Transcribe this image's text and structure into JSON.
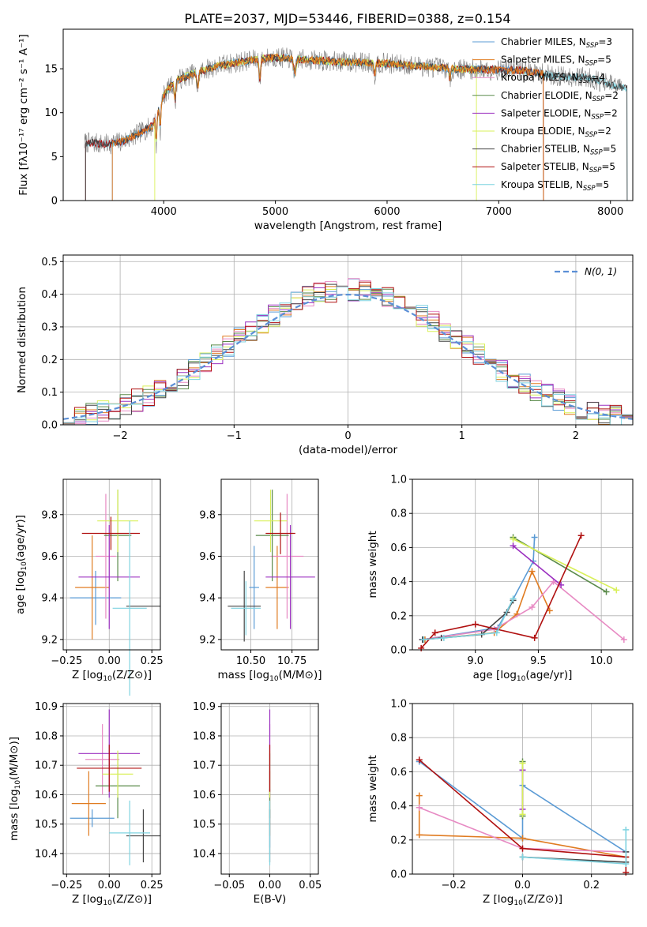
{
  "figure": {
    "title": "PLATE=2037, MJD=53446, FIBERID=0388, z=0.154"
  },
  "colors": {
    "chabrier_miles": "#5b9bd5",
    "salpeter_miles": "#e07b20",
    "kroupa_miles": "#e78ac3",
    "chabrier_elodie": "#5a8a4a",
    "salpeter_elodie": "#9b30c0",
    "kroupa_elodie": "#d9f05a",
    "chabrier_stelib": "#444444",
    "salpeter_stelib": "#b01010",
    "kroupa_stelib": "#7fd3e0",
    "data_spectrum": "#7f7f7f",
    "normal_curve": "#5b8fd6"
  },
  "chart_data": [
    {
      "id": "spectrum",
      "type": "line",
      "xlabel": "wavelength [Angstrom, rest frame]",
      "ylabel": "Flux [fλ10⁻¹⁷ erg cm⁻² s⁻¹ A⁻¹]",
      "xlim": [
        3100,
        8200
      ],
      "ylim": [
        0,
        19.5
      ],
      "xticks": [
        4000,
        5000,
        6000,
        7000,
        8000
      ],
      "yticks": [
        0,
        5,
        10,
        15
      ],
      "grid": false,
      "legend_position": "top-right",
      "legend": [
        {
          "label": "Chabrier MILES, N",
          "sub": "SSP",
          "suffix": "=3",
          "color_key": "chabrier_miles"
        },
        {
          "label": "Salpeter MILES, N",
          "sub": "SSP",
          "suffix": "=5",
          "color_key": "salpeter_miles"
        },
        {
          "label": "Kroupa MILES, N",
          "sub": "SSP",
          "suffix": "=4",
          "color_key": "kroupa_miles"
        },
        {
          "label": "Chabrier ELODIE, N",
          "sub": "SSP",
          "suffix": "=2",
          "color_key": "chabrier_elodie"
        },
        {
          "label": "Salpeter ELODIE, N",
          "sub": "SSP",
          "suffix": "=2",
          "color_key": "salpeter_elodie"
        },
        {
          "label": "Kroupa ELODIE, N",
          "sub": "SSP",
          "suffix": "=2",
          "color_key": "kroupa_elodie"
        },
        {
          "label": "Chabrier STELIB, N",
          "sub": "SSP",
          "suffix": "=5",
          "color_key": "chabrier_stelib"
        },
        {
          "label": "Salpeter STELIB, N",
          "sub": "SSP",
          "suffix": "=5",
          "color_key": "salpeter_stelib"
        },
        {
          "label": "Kroupa STELIB, N",
          "sub": "SSP",
          "suffix": "=5",
          "color_key": "kroupa_stelib"
        }
      ],
      "continuum": [
        [
          3300,
          6.6
        ],
        [
          3500,
          6.4
        ],
        [
          3650,
          6.8
        ],
        [
          3800,
          7.8
        ],
        [
          3900,
          8.5
        ],
        [
          4000,
          12.0
        ],
        [
          4100,
          13.6
        ],
        [
          4300,
          14.6
        ],
        [
          4500,
          15.4
        ],
        [
          4800,
          16.0
        ],
        [
          5000,
          16.3
        ],
        [
          5300,
          16.0
        ],
        [
          5600,
          15.8
        ],
        [
          6000,
          15.6
        ],
        [
          6300,
          15.3
        ],
        [
          6600,
          15.0
        ],
        [
          6900,
          14.9
        ],
        [
          7200,
          14.8
        ],
        [
          7500,
          14.2
        ],
        [
          7800,
          14.0
        ],
        [
          8000,
          13.2
        ],
        [
          8150,
          12.8
        ]
      ],
      "data_range": [
        3290,
        8100
      ],
      "model_segments": [
        {
          "color_key": "kroupa_stelib",
          "range": [
            3300,
            8150
          ]
        },
        {
          "color_key": "chabrier_miles",
          "range": [
            3540,
            7400
          ]
        },
        {
          "color_key": "salpeter_stelib",
          "range": [
            3300,
            7400
          ]
        },
        {
          "color_key": "kroupa_elodie",
          "range": [
            3920,
            6800
          ]
        },
        {
          "color_key": "chabrier_stelib",
          "range": [
            3300,
            8150
          ]
        },
        {
          "color_key": "salpeter_miles",
          "range": [
            3540,
            7400
          ]
        }
      ]
    },
    {
      "id": "residuals",
      "type": "histogram",
      "xlabel": "(data-model)/error",
      "ylabel": "Normed distribution",
      "xlim": [
        -2.5,
        2.5
      ],
      "ylim": [
        0,
        0.52
      ],
      "xticks": [
        -2,
        -1,
        0,
        1,
        2
      ],
      "yticks": [
        0.0,
        0.1,
        0.2,
        0.3,
        0.4,
        0.5
      ],
      "grid": true,
      "legend_position": "top-right",
      "normal_label": "N(0, 1)",
      "bin_width": 0.1,
      "series": [
        {
          "color_key": "chabrier_miles",
          "phase": 0.0
        },
        {
          "color_key": "salpeter_miles",
          "phase": 1.0
        },
        {
          "color_key": "kroupa_miles",
          "phase": 2.0
        },
        {
          "color_key": "chabrier_elodie",
          "phase": 3.0
        },
        {
          "color_key": "salpeter_elodie",
          "phase": 4.0
        },
        {
          "color_key": "kroupa_elodie",
          "phase": 5.0
        },
        {
          "color_key": "chabrier_stelib",
          "phase": 6.0
        },
        {
          "color_key": "salpeter_stelib",
          "phase": 7.0
        },
        {
          "color_key": "kroupa_stelib",
          "phase": 8.0
        }
      ]
    },
    {
      "id": "age_vs_z",
      "type": "errorbar",
      "xlabel": "Z [log10(Z/Z⊙)]",
      "ylabel": "age [log10(age/yr)]",
      "xlim": [
        -0.27,
        0.3
      ],
      "ylim": [
        9.15,
        9.97
      ],
      "xticks": [
        -0.25,
        0.0,
        0.25
      ],
      "xtick_labels": [
        "−0.25",
        "0.00",
        "0.25"
      ],
      "yticks": [
        9.2,
        9.4,
        9.6,
        9.8
      ],
      "grid": true,
      "points": [
        {
          "color_key": "chabrier_miles",
          "x": -0.08,
          "y": 9.4,
          "xerr": 0.15,
          "yerr": 0.13
        },
        {
          "color_key": "salpeter_miles",
          "x": -0.1,
          "y": 9.45,
          "xerr": 0.1,
          "yerr": 0.25
        },
        {
          "color_key": "kroupa_miles",
          "x": -0.02,
          "y": 9.6,
          "xerr": 0.06,
          "yerr": 0.3
        },
        {
          "color_key": "chabrier_elodie",
          "x": 0.05,
          "y": 9.7,
          "xerr": 0.08,
          "yerr": 0.22
        },
        {
          "color_key": "salpeter_elodie",
          "x": 0.0,
          "y": 9.5,
          "xerr": 0.18,
          "yerr": 0.25
        },
        {
          "color_key": "kroupa_elodie",
          "x": 0.05,
          "y": 9.77,
          "xerr": 0.12,
          "yerr": 0.15
        },
        {
          "color_key": "chabrier_stelib",
          "x": 0.2,
          "y": 9.36,
          "xerr": 0.1,
          "yerr": 0.0
        },
        {
          "color_key": "salpeter_stelib",
          "x": 0.01,
          "y": 9.71,
          "xerr": 0.17,
          "yerr": 0.08
        },
        {
          "color_key": "kroupa_stelib",
          "x": 0.12,
          "y": 9.35,
          "xerr": 0.1,
          "yerr": 0.42
        }
      ]
    },
    {
      "id": "age_vs_mass",
      "type": "errorbar",
      "xlabel": "mass [log10(M/M⊙)]",
      "ylabel": "",
      "xlim": [
        10.32,
        10.91
      ],
      "ylim": [
        9.15,
        9.97
      ],
      "xticks": [
        10.5,
        10.75
      ],
      "xtick_labels": [
        "10.50",
        "10.75"
      ],
      "yticks": [
        9.2,
        9.4,
        9.6,
        9.8
      ],
      "grid": true,
      "points": [
        {
          "color_key": "chabrier_miles",
          "x": 10.52,
          "y": 9.45,
          "xerr": 0.03,
          "yerr": 0.2
        },
        {
          "color_key": "salpeter_miles",
          "x": 10.66,
          "y": 9.45,
          "xerr": 0.07,
          "yerr": 0.2
        },
        {
          "color_key": "kroupa_miles",
          "x": 10.72,
          "y": 9.6,
          "xerr": 0.1,
          "yerr": 0.3
        },
        {
          "color_key": "chabrier_elodie",
          "x": 10.63,
          "y": 9.7,
          "xerr": 0.1,
          "yerr": 0.22
        },
        {
          "color_key": "salpeter_elodie",
          "x": 10.74,
          "y": 9.5,
          "xerr": 0.15,
          "yerr": 0.25
        },
        {
          "color_key": "kroupa_elodie",
          "x": 10.62,
          "y": 9.77,
          "xerr": 0.1,
          "yerr": 0.15
        },
        {
          "color_key": "chabrier_stelib",
          "x": 10.46,
          "y": 9.36,
          "xerr": 0.1,
          "yerr": 0.17
        },
        {
          "color_key": "salpeter_stelib",
          "x": 10.68,
          "y": 9.71,
          "xerr": 0.09,
          "yerr": 0.1
        },
        {
          "color_key": "kroupa_stelib",
          "x": 10.47,
          "y": 9.35,
          "xerr": 0.09,
          "yerr": 0.13
        }
      ]
    },
    {
      "id": "mass_weight_vs_age",
      "type": "line",
      "xlabel": "age [log10(age/yr)]",
      "ylabel": "mass weight",
      "xlim": [
        8.5,
        10.25
      ],
      "ylim": [
        0.0,
        1.0
      ],
      "xticks": [
        9.0,
        9.5,
        10.0
      ],
      "xtick_labels": [
        "9.0",
        "9.5",
        "10.0"
      ],
      "yticks": [
        0.0,
        0.2,
        0.4,
        0.6,
        0.8,
        1.0
      ],
      "grid": true,
      "series": [
        {
          "color_key": "chabrier_miles",
          "x": [
            8.58,
            9.18,
            9.46,
            9.47
          ],
          "y": [
            0.06,
            0.13,
            0.52,
            0.66
          ]
        },
        {
          "color_key": "salpeter_miles",
          "x": [
            8.6,
            9.15,
            9.33,
            9.45,
            9.59
          ],
          "y": [
            0.06,
            0.1,
            0.21,
            0.46,
            0.23
          ]
        },
        {
          "color_key": "kroupa_miles",
          "x": [
            8.58,
            9.15,
            9.45,
            9.62,
            10.18
          ],
          "y": [
            0.06,
            0.12,
            0.25,
            0.4,
            0.06
          ]
        },
        {
          "color_key": "chabrier_elodie",
          "x": [
            9.3,
            10.04
          ],
          "y": [
            0.66,
            0.34
          ]
        },
        {
          "color_key": "salpeter_elodie",
          "x": [
            9.3,
            9.68
          ],
          "y": [
            0.61,
            0.38
          ]
        },
        {
          "color_key": "kroupa_elodie",
          "x": [
            9.3,
            10.12
          ],
          "y": [
            0.65,
            0.35
          ]
        },
        {
          "color_key": "chabrier_stelib",
          "x": [
            8.58,
            8.73,
            9.05,
            9.25,
            9.3
          ],
          "y": [
            0.06,
            0.07,
            0.09,
            0.22,
            0.29
          ]
        },
        {
          "color_key": "salpeter_stelib",
          "x": [
            8.57,
            8.68,
            9.0,
            9.47,
            9.84
          ],
          "y": [
            0.01,
            0.1,
            0.15,
            0.07,
            0.67
          ]
        },
        {
          "color_key": "kroupa_stelib",
          "x": [
            8.59,
            8.75,
            9.17,
            9.3
          ],
          "y": [
            0.06,
            0.07,
            0.1,
            0.3
          ]
        }
      ]
    },
    {
      "id": "mass_vs_z",
      "type": "errorbar",
      "xlabel": "Z [log10(Z/Z⊙)]",
      "ylabel": "mass [log10(M/M⊙)]",
      "xlim": [
        -0.27,
        0.3
      ],
      "ylim": [
        10.33,
        10.91
      ],
      "xticks": [
        -0.25,
        0.0,
        0.25
      ],
      "xtick_labels": [
        "−0.25",
        "0.00",
        "0.25"
      ],
      "yticks": [
        10.4,
        10.5,
        10.6,
        10.7,
        10.8,
        10.9
      ],
      "grid": true,
      "points": [
        {
          "color_key": "chabrier_miles",
          "x": -0.1,
          "y": 10.52,
          "xerr": 0.13,
          "yerr": 0.03
        },
        {
          "color_key": "salpeter_miles",
          "x": -0.12,
          "y": 10.57,
          "xerr": 0.1,
          "yerr": 0.11
        },
        {
          "color_key": "kroupa_miles",
          "x": -0.04,
          "y": 10.72,
          "xerr": 0.1,
          "yerr": 0.12
        },
        {
          "color_key": "chabrier_elodie",
          "x": 0.05,
          "y": 10.63,
          "xerr": 0.13,
          "yerr": 0.11
        },
        {
          "color_key": "salpeter_elodie",
          "x": 0.0,
          "y": 10.74,
          "xerr": 0.18,
          "yerr": 0.15
        },
        {
          "color_key": "kroupa_elodie",
          "x": 0.05,
          "y": 10.67,
          "xerr": 0.09,
          "yerr": 0.08
        },
        {
          "color_key": "chabrier_stelib",
          "x": 0.2,
          "y": 10.46,
          "xerr": 0.1,
          "yerr": 0.09
        },
        {
          "color_key": "salpeter_stelib",
          "x": 0.0,
          "y": 10.69,
          "xerr": 0.19,
          "yerr": 0.08
        },
        {
          "color_key": "kroupa_stelib",
          "x": 0.12,
          "y": 10.47,
          "xerr": 0.12,
          "yerr": 0.11
        }
      ]
    },
    {
      "id": "mass_vs_ebv",
      "type": "errorbar",
      "xlabel": "E(B-V)",
      "ylabel": "",
      "xlim": [
        -0.06,
        0.06
      ],
      "ylim": [
        10.33,
        10.91
      ],
      "xticks": [
        -0.05,
        0.0,
        0.05
      ],
      "xtick_labels": [
        "−0.05",
        "0.00",
        "0.05"
      ],
      "yticks": [
        10.4,
        10.5,
        10.6,
        10.7,
        10.8,
        10.9
      ],
      "grid": true,
      "points": [
        {
          "color_key": "chabrier_miles",
          "x": 0.0,
          "y": 10.52,
          "xerr": 0,
          "yerr": 0.1
        },
        {
          "color_key": "salpeter_miles",
          "x": 0.0,
          "y": 10.57,
          "xerr": 0,
          "yerr": 0.11
        },
        {
          "color_key": "kroupa_miles",
          "x": 0.0,
          "y": 10.72,
          "xerr": 0,
          "yerr": 0.12
        },
        {
          "color_key": "chabrier_elodie",
          "x": 0.0,
          "y": 10.63,
          "xerr": 0,
          "yerr": 0.11
        },
        {
          "color_key": "salpeter_elodie",
          "x": 0.0,
          "y": 10.74,
          "xerr": 0,
          "yerr": 0.15
        },
        {
          "color_key": "kroupa_elodie",
          "x": 0.0,
          "y": 10.67,
          "xerr": 0,
          "yerr": 0.08
        },
        {
          "color_key": "chabrier_stelib",
          "x": 0.0,
          "y": 10.46,
          "xerr": 0,
          "yerr": 0.09
        },
        {
          "color_key": "salpeter_stelib",
          "x": 0.0,
          "y": 10.69,
          "xerr": 0,
          "yerr": 0.08
        },
        {
          "color_key": "kroupa_stelib",
          "x": 0.0,
          "y": 10.47,
          "xerr": 0,
          "yerr": 0.11
        }
      ]
    },
    {
      "id": "mass_weight_vs_z",
      "type": "line",
      "xlabel": "Z [log10(Z/Z⊙)]",
      "ylabel": "mass weight",
      "xlim": [
        -0.32,
        0.32
      ],
      "ylim": [
        0.0,
        1.0
      ],
      "xticks": [
        -0.2,
        0.0,
        0.2
      ],
      "xtick_labels": [
        "−0.2",
        "0.0",
        "0.2"
      ],
      "yticks": [
        0.0,
        0.2,
        0.4,
        0.6,
        0.8,
        1.0
      ],
      "grid": true,
      "series": [
        {
          "color_key": "chabrier_miles",
          "x": [
            -0.3,
            0.0,
            0.0,
            0.3
          ],
          "y": [
            0.66,
            0.21,
            0.52,
            0.13
          ]
        },
        {
          "color_key": "salpeter_miles",
          "x": [
            -0.3,
            -0.3,
            0.0,
            0.3
          ],
          "y": [
            0.46,
            0.23,
            0.21,
            0.1
          ]
        },
        {
          "color_key": "kroupa_miles",
          "x": [
            -0.3,
            0.0,
            0.3
          ],
          "y": [
            0.39,
            0.15,
            0.13
          ]
        },
        {
          "color_key": "chabrier_elodie",
          "x": [
            0.0,
            0.0
          ],
          "y": [
            0.66,
            0.34
          ]
        },
        {
          "color_key": "salpeter_elodie",
          "x": [
            0.0,
            0.0
          ],
          "y": [
            0.61,
            0.38
          ]
        },
        {
          "color_key": "kroupa_elodie",
          "x": [
            0.0,
            0.0
          ],
          "y": [
            0.65,
            0.35
          ]
        },
        {
          "color_key": "chabrier_stelib",
          "x": [
            0.0,
            0.3,
            0.3
          ],
          "y": [
            0.1,
            0.07,
            0.13
          ]
        },
        {
          "color_key": "salpeter_stelib",
          "x": [
            -0.3,
            0.0,
            0.3,
            0.3
          ],
          "y": [
            0.67,
            0.15,
            0.1,
            0.01
          ]
        },
        {
          "color_key": "kroupa_stelib",
          "x": [
            0.0,
            0.3,
            0.3
          ],
          "y": [
            0.1,
            0.06,
            0.26
          ]
        }
      ]
    }
  ]
}
